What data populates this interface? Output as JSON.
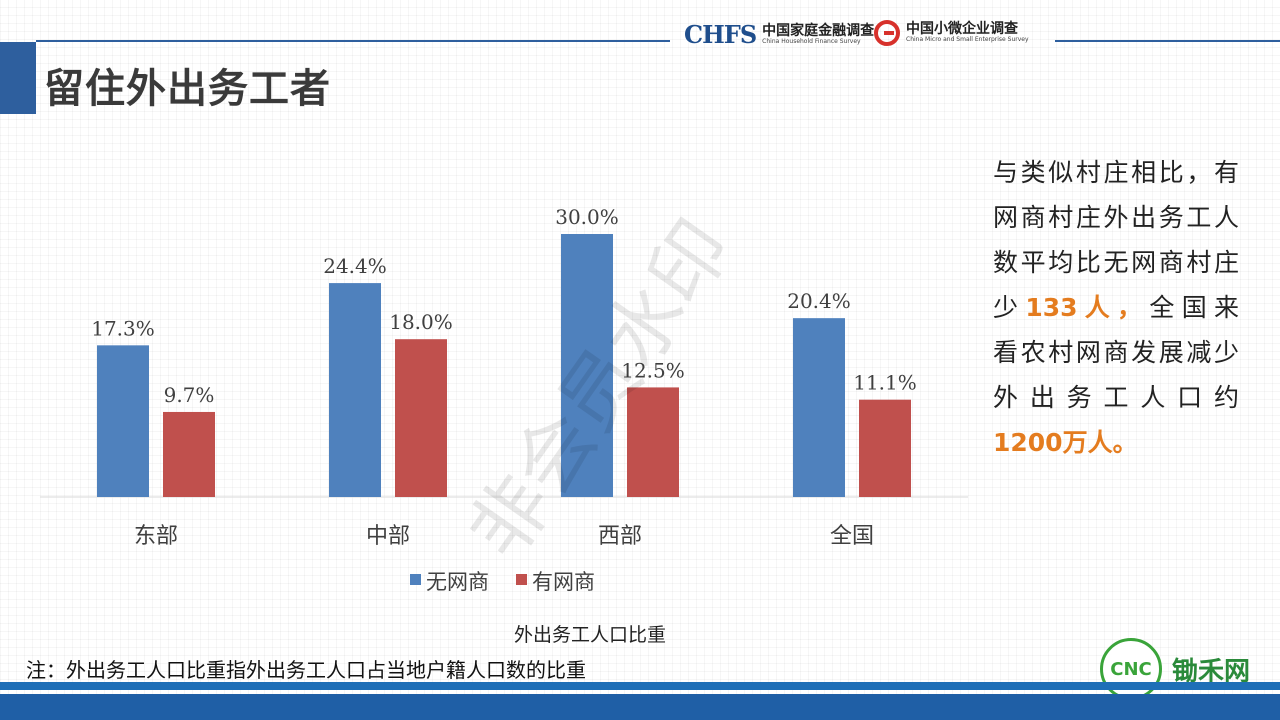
{
  "header": {
    "title": "留住外出务工者",
    "logo_chfs": {
      "mark": "CHFS",
      "cn": "中国家庭金融调查",
      "en": "China Household Finance Survey"
    },
    "logo_cmse": {
      "cn": "中国小微企业调查",
      "en": "China Micro and Small Enterprise Survey"
    }
  },
  "watermark": "非会员水印",
  "side_text": {
    "line1": "与类似村庄相比，有",
    "line2": "网商村庄外出务工人",
    "line3": "数平均比无网商村庄",
    "line4_pre": "少",
    "line4_hl": "133人，",
    "line4_post": "全国来",
    "line5": "看农村网商发展减少",
    "line6": "外 出 务 工 人 口 约",
    "line7_hl": "1200万人。"
  },
  "chart_data": {
    "type": "bar",
    "categories": [
      "东部",
      "中部",
      "西部",
      "全国"
    ],
    "series": [
      {
        "name": "无网商",
        "values": [
          17.3,
          24.4,
          30.0,
          20.4
        ],
        "labels": [
          "17.3%",
          "24.4%",
          "30.0%",
          "20.4%"
        ],
        "color": "#4f81bd"
      },
      {
        "name": "有网商",
        "values": [
          9.7,
          18.0,
          12.5,
          11.1
        ],
        "labels": [
          "9.7%",
          "18.0%",
          "12.5%",
          "11.1%"
        ],
        "color": "#c0504d"
      }
    ],
    "xlabel": "外出务工人口比重",
    "ylim": [
      0,
      30
    ],
    "grid": false,
    "legend": "bottom"
  },
  "note": "注：外出务工人口比重指外出务工人口占当地户籍人口数的比重",
  "brand": {
    "seal": "CNC",
    "name": "锄禾网"
  },
  "colors": {
    "accent": "#2e5f9e",
    "highlight": "#e47c1f"
  }
}
